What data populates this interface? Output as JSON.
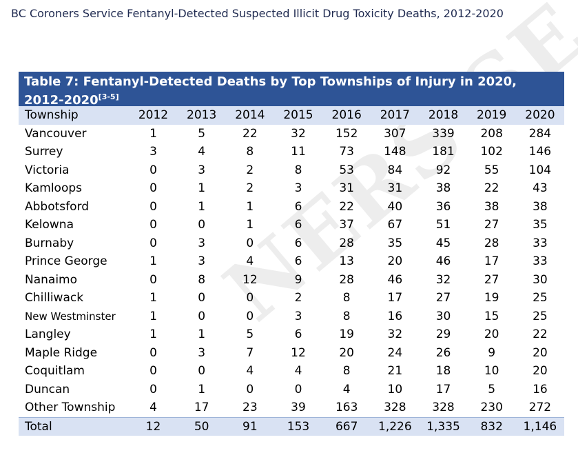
{
  "doc_title": "BC Coroners Service Fentanyl-Detected Suspected Illicit Drug Toxicity Deaths, 2012-2020",
  "watermark": "NERS SE",
  "table": {
    "caption": "Table 7: Fentanyl-Detected Deaths by Top Townships of Injury in 2020, 2012-2020",
    "caption_ref": "[3-5]",
    "headers": [
      "Township",
      "2012",
      "2013",
      "2014",
      "2015",
      "2016",
      "2017",
      "2018",
      "2019",
      "2020"
    ],
    "rows": [
      [
        "Vancouver",
        "1",
        "5",
        "22",
        "32",
        "152",
        "307",
        "339",
        "208",
        "284"
      ],
      [
        "Surrey",
        "3",
        "4",
        "8",
        "11",
        "73",
        "148",
        "181",
        "102",
        "146"
      ],
      [
        "Victoria",
        "0",
        "3",
        "2",
        "8",
        "53",
        "84",
        "92",
        "55",
        "104"
      ],
      [
        "Kamloops",
        "0",
        "1",
        "2",
        "3",
        "31",
        "31",
        "38",
        "22",
        "43"
      ],
      [
        "Abbotsford",
        "0",
        "1",
        "1",
        "6",
        "22",
        "40",
        "36",
        "38",
        "38"
      ],
      [
        "Kelowna",
        "0",
        "0",
        "1",
        "6",
        "37",
        "67",
        "51",
        "27",
        "35"
      ],
      [
        "Burnaby",
        "0",
        "3",
        "0",
        "6",
        "28",
        "35",
        "45",
        "28",
        "33"
      ],
      [
        "Prince George",
        "1",
        "3",
        "4",
        "6",
        "13",
        "20",
        "46",
        "17",
        "33"
      ],
      [
        "Nanaimo",
        "0",
        "8",
        "12",
        "9",
        "28",
        "46",
        "32",
        "27",
        "30"
      ],
      [
        "Chilliwack",
        "1",
        "0",
        "0",
        "2",
        "8",
        "17",
        "27",
        "19",
        "25"
      ],
      [
        "New Westminster",
        "1",
        "0",
        "0",
        "3",
        "8",
        "16",
        "30",
        "15",
        "25"
      ],
      [
        "Langley",
        "1",
        "1",
        "5",
        "6",
        "19",
        "32",
        "29",
        "20",
        "22"
      ],
      [
        "Maple Ridge",
        "0",
        "3",
        "7",
        "12",
        "20",
        "24",
        "26",
        "9",
        "20"
      ],
      [
        "Coquitlam",
        "0",
        "0",
        "4",
        "4",
        "8",
        "21",
        "18",
        "10",
        "20"
      ],
      [
        "Duncan",
        "0",
        "1",
        "0",
        "0",
        "4",
        "10",
        "17",
        "5",
        "16"
      ],
      [
        "Other Township",
        "4",
        "17",
        "23",
        "39",
        "163",
        "328",
        "328",
        "230",
        "272"
      ]
    ],
    "total": [
      "Total",
      "12",
      "50",
      "91",
      "153",
      "667",
      "1,226",
      "1,335",
      "832",
      "1,146"
    ]
  }
}
